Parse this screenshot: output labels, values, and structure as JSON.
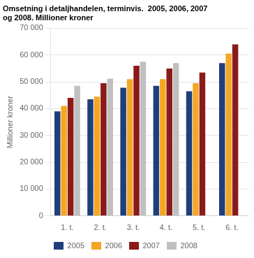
{
  "chart_data": {
    "type": "bar",
    "title": "Omsetning i detaljhandelen, terminvis.  2005, 2006, 2007\nog 2008. Millioner kroner",
    "ylabel": "Millioner kroner",
    "categories": [
      "1. t.",
      "2. t.",
      "3. t.",
      "4. t.",
      "5. t.",
      "6. t."
    ],
    "series": [
      {
        "name": "2005",
        "color": "#1F3E7C",
        "values": [
          39000,
          43500,
          47800,
          48500,
          46500,
          57000
        ]
      },
      {
        "name": "2006",
        "color": "#F5A623",
        "values": [
          41000,
          44500,
          51000,
          51000,
          49500,
          60500
        ]
      },
      {
        "name": "2007",
        "color": "#8B1A1A",
        "values": [
          44000,
          49500,
          56000,
          55000,
          53500,
          64000
        ]
      },
      {
        "name": "2008",
        "color": "#C0C0C0",
        "values": [
          48500,
          51200,
          57500,
          57000,
          null,
          null
        ]
      }
    ],
    "ylim": [
      0,
      70000
    ],
    "yticks": [
      0,
      {
        "value": 10000,
        "label": "10 000"
      },
      {
        "value": 20000,
        "label": "20 000"
      },
      {
        "value": 30000,
        "label": "30 000"
      },
      {
        "value": 40000,
        "label": "40 000"
      },
      {
        "value": 50000,
        "label": "50 000"
      },
      {
        "value": 60000,
        "label": "60 000"
      },
      {
        "value": 70000,
        "label": "70 000"
      }
    ],
    "grid": true,
    "legend": "bottom"
  }
}
